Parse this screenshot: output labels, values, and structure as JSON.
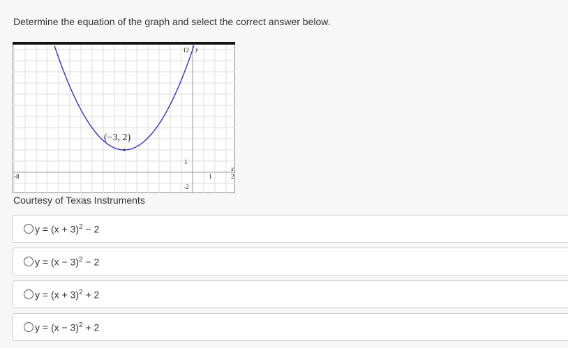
{
  "question": "Determine the equation of the graph and select the correct answer below.",
  "figure": {
    "labels": {
      "y_top": "12",
      "y_axis": "y",
      "vertex": "(−3, 2)",
      "y_one": "1",
      "x_left": "-8",
      "x_one": "1",
      "x_two": "2",
      "x_axis": "x",
      "y_bottom": "-2"
    },
    "caption": "Courtesy of Texas Instruments"
  },
  "options": [
    {
      "base": "y = (x + 3)",
      "exp": "2",
      "tail": " − 2"
    },
    {
      "base": "y = (x − 3)",
      "exp": "2",
      "tail": " − 2"
    },
    {
      "base": "y = (x + 3)",
      "exp": "2",
      "tail": " + 2"
    },
    {
      "base": "y = (x − 3)",
      "exp": "2",
      "tail": " + 2"
    }
  ]
}
